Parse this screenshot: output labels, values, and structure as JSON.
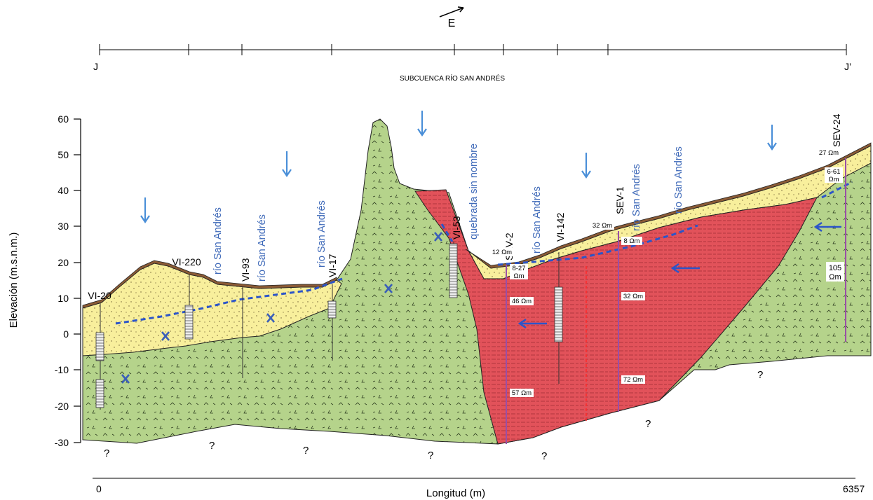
{
  "direction_label": "E",
  "profile": {
    "start": "J",
    "end": "J’",
    "subtitle": "SUBCUENCA RÍO SAN ANDRÉS"
  },
  "axes": {
    "ylabel": "Elevación (m.s.n.m.)",
    "xlabel": "Longitud (m)",
    "x_start": "0",
    "x_end": "6357",
    "y_ticks": [
      "60",
      "50",
      "40",
      "30",
      "20",
      "10",
      "0",
      "-10",
      "-20",
      "-30"
    ]
  },
  "wells": [
    "VI-20",
    "VI-220",
    "VI-93",
    "VI-17",
    "VI-53",
    "SEV-2",
    "VI-142",
    "SEV-1",
    "SEV-24"
  ],
  "rivers": [
    "río San Andrés",
    "río San Andrés",
    "río San Andrés",
    "quebrada sin nombre",
    "río San Andrés",
    "río San Andrés",
    "río San Andrés"
  ],
  "resistivities": [
    "12 Ωm",
    "8-27",
    "Ωm",
    "46 Ωm",
    "57 Ωm",
    "32 Ωm",
    "8 Ωm",
    "32 Ωm",
    "72 Ωm",
    "27 Ωm",
    "6-61",
    "Ωm",
    "105",
    "Ωm"
  ],
  "unknowns": [
    "?",
    "?",
    "?",
    "?",
    "?",
    "?",
    "?"
  ],
  "colors": {
    "alluvium": "#f8ef9c",
    "volcanic": "#b5d38b",
    "clay": "#e2525a",
    "soil": "#8a5a35",
    "water_table": "#2c55c9",
    "flow_arrow": "#4a8fd8",
    "sev_line": "#9a4fa6"
  }
}
